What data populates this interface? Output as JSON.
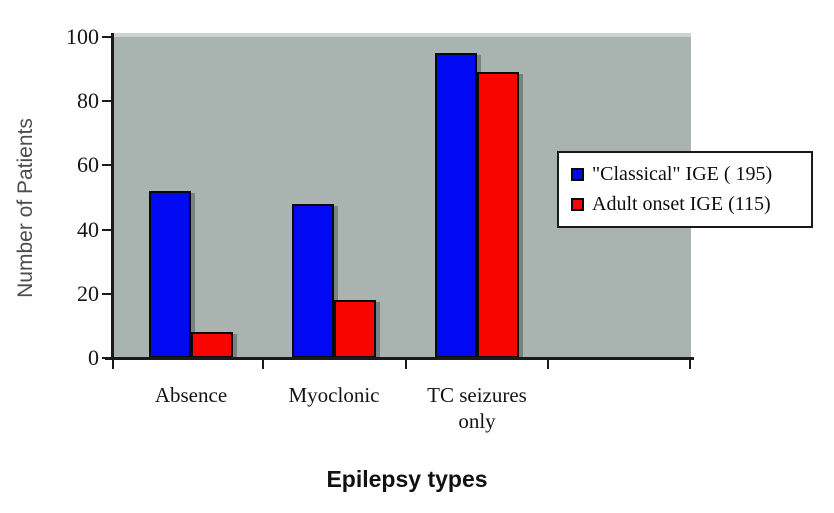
{
  "figure": {
    "background_color": "#ffffff",
    "plot_background_color": "#a9b4b1",
    "plot_top_highlight_color": "#ccd3d0",
    "axis_color": "#1a1a1a",
    "tick_label_color": "#141414",
    "y_axis_title_color": "#4d4d4d"
  },
  "chart_data": {
    "type": "bar",
    "title": "",
    "categories": [
      "Absence",
      "Myoclonic",
      "TC seizures\nonly"
    ],
    "series": [
      {
        "name": "\"Classical\" IGE ( 195)",
        "color": "#0009f2",
        "values": [
          52,
          48,
          95
        ]
      },
      {
        "name": "Adult onset IGE (115)",
        "color": "#f90500",
        "values": [
          8,
          18,
          89
        ]
      }
    ],
    "xlabel": "Epilepsy types",
    "ylabel": "Number of Patients",
    "ylim": [
      0,
      100
    ],
    "yticks": [
      0,
      20,
      40,
      60,
      80,
      100
    ],
    "grid": false,
    "legend_position": "right-inside",
    "legend_border": true,
    "bar_outline_color": "#0a0a0a"
  }
}
